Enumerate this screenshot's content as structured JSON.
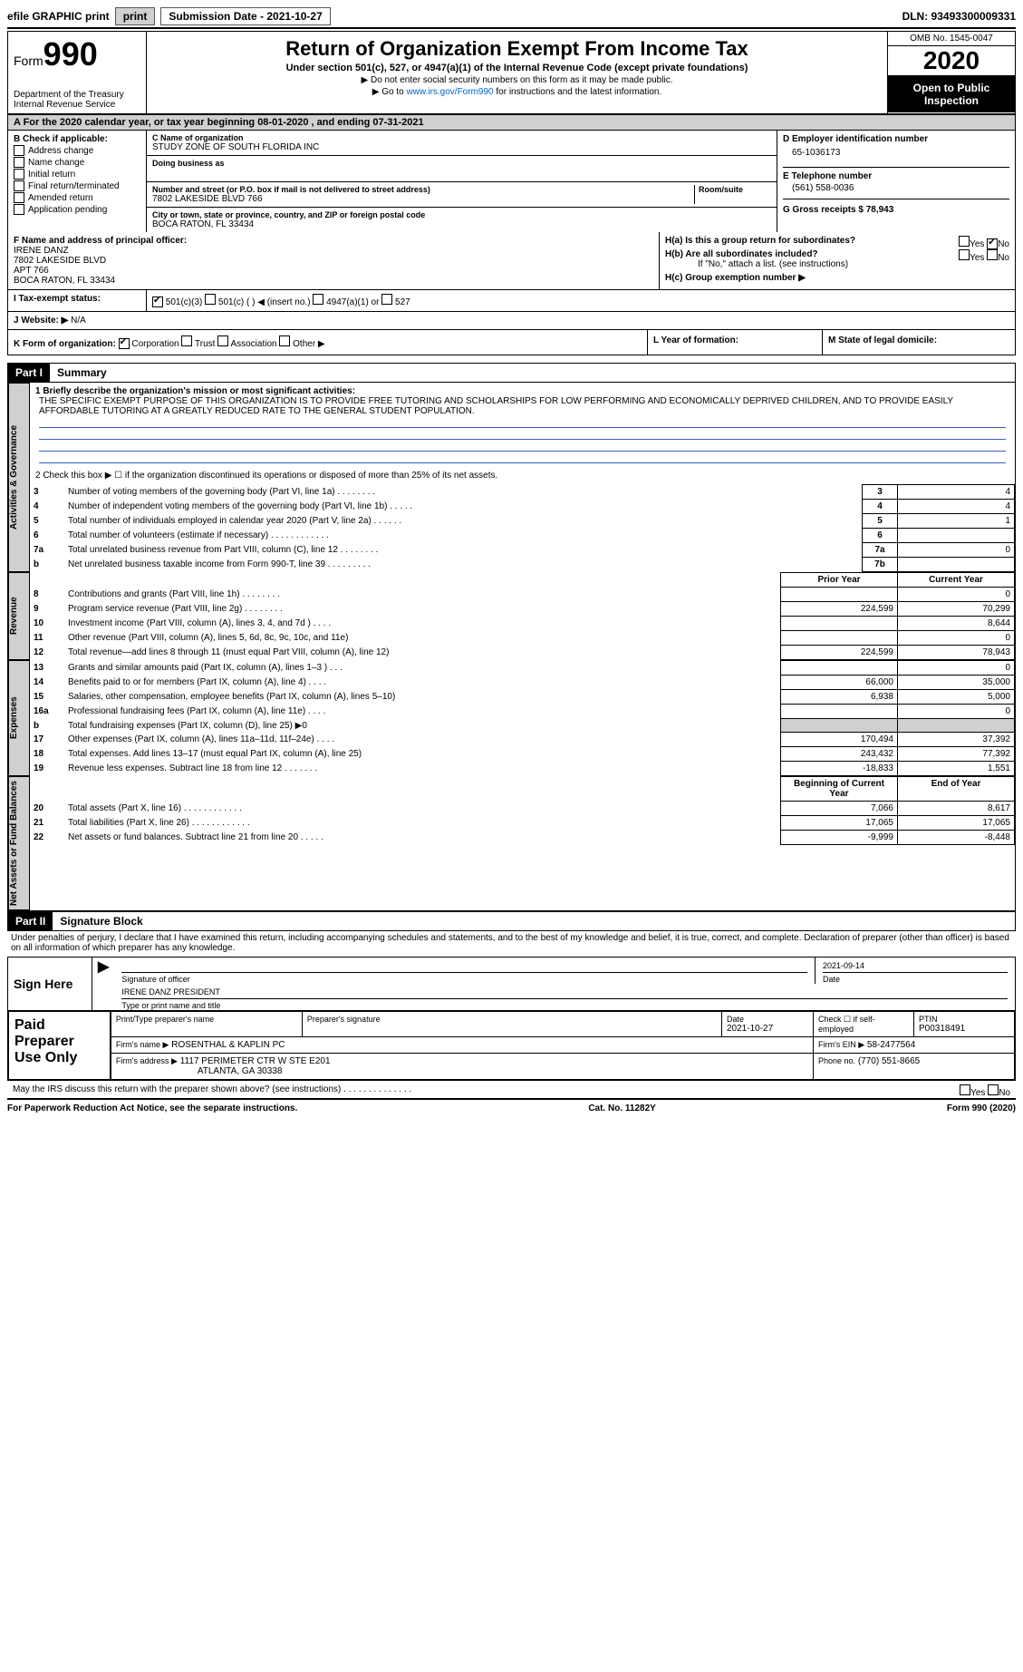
{
  "topbar": {
    "efile": "efile GRAPHIC print",
    "submission_label": "Submission Date - 2021-10-27",
    "dln": "DLN: 93493300009331"
  },
  "header": {
    "form_prefix": "Form",
    "form_number": "990",
    "dept": "Department of the Treasury",
    "irs": "Internal Revenue Service",
    "title": "Return of Organization Exempt From Income Tax",
    "subtitle": "Under section 501(c), 527, or 4947(a)(1) of the Internal Revenue Code (except private foundations)",
    "instr1": "▶ Do not enter social security numbers on this form as it may be made public.",
    "instr2_pre": "▶ Go to ",
    "instr2_link": "www.irs.gov/Form990",
    "instr2_post": " for instructions and the latest information.",
    "omb": "OMB No. 1545-0047",
    "year": "2020",
    "open_public": "Open to Public Inspection"
  },
  "period": {
    "text": "A For the 2020 calendar year, or tax year beginning 08-01-2020    , and ending 07-31-2021"
  },
  "boxB": {
    "label": "B Check if applicable:",
    "items": [
      "Address change",
      "Name change",
      "Initial return",
      "Final return/terminated",
      "Amended return",
      "Application pending"
    ]
  },
  "boxC": {
    "name_label": "C Name of organization",
    "name": "STUDY ZONE OF SOUTH FLORIDA INC",
    "dba_label": "Doing business as",
    "dba": "",
    "addr_label": "Number and street (or P.O. box if mail is not delivered to street address)",
    "room_label": "Room/suite",
    "addr": "7802 LAKESIDE BLVD 766",
    "city_label": "City or town, state or province, country, and ZIP or foreign postal code",
    "city": "BOCA RATON, FL  33434"
  },
  "boxD": {
    "label": "D Employer identification number",
    "ein": "65-1036173"
  },
  "boxE": {
    "label": "E Telephone number",
    "phone": "(561) 558-0036"
  },
  "boxG": {
    "label": "G Gross receipts $ 78,943"
  },
  "boxF": {
    "label": "F  Name and address of principal officer:",
    "name": "IRENE DANZ",
    "addr1": "7802 LAKESIDE BLVD",
    "addr2": "APT 766",
    "city": "BOCA RATON, FL  33434"
  },
  "boxH": {
    "a_label": "H(a)  Is this a group return for subordinates?",
    "b_label": "H(b)  Are all subordinates included?",
    "b_note": "If \"No,\" attach a list. (see instructions)",
    "c_label": "H(c)  Group exemption number ▶",
    "yes": "Yes",
    "no": "No"
  },
  "boxI": {
    "label": "I   Tax-exempt status:",
    "opts": [
      "501(c)(3)",
      "501(c) (   ) ◀ (insert no.)",
      "4947(a)(1) or",
      "527"
    ]
  },
  "boxJ": {
    "label": "J   Website: ▶",
    "value": "N/A"
  },
  "boxK": {
    "label": "K Form of organization:",
    "opts": [
      "Corporation",
      "Trust",
      "Association",
      "Other ▶"
    ]
  },
  "boxL": {
    "label": "L Year of formation:"
  },
  "boxM": {
    "label": "M State of legal domicile:"
  },
  "part1": {
    "header": "Part I",
    "title": "Summary",
    "line1_label": "1  Briefly describe the organization's mission or most significant activities:",
    "mission": "THE SPECIFIC EXEMPT PURPOSE OF THIS ORGANIZATION IS TO PROVIDE FREE TUTORING AND SCHOLARSHIPS FOR LOW PERFORMING AND ECONOMICALLY DEPRIVED CHILDREN, AND TO PROVIDE EASILY AFFORDABLE TUTORING AT A GREATLY REDUCED RATE TO THE GENERAL STUDENT POPULATION.",
    "line2": "2   Check this box ▶ ☐  if the organization discontinued its operations or disposed of more than 25% of its net assets.",
    "tabs": {
      "gov": "Activities & Governance",
      "rev": "Revenue",
      "exp": "Expenses",
      "net": "Net Assets or Fund Balances"
    },
    "rows_gov": [
      {
        "n": "3",
        "desc": "Number of voting members of the governing body (Part VI, line 1a)   .    .    .    .    .    .    .    .",
        "ln": "3",
        "v": "4"
      },
      {
        "n": "4",
        "desc": "Number of independent voting members of the governing body (Part VI, line 1b)   .    .    .    .    .",
        "ln": "4",
        "v": "4"
      },
      {
        "n": "5",
        "desc": "Total number of individuals employed in calendar year 2020 (Part V, line 2a)  .    .    .    .    .    .",
        "ln": "5",
        "v": "1"
      },
      {
        "n": "6",
        "desc": "Total number of volunteers (estimate if necessary)  .    .    .    .    .    .    .    .    .    .    .    .",
        "ln": "6",
        "v": ""
      },
      {
        "n": "7a",
        "desc": "Total unrelated business revenue from Part VIII, column (C), line 12   .    .    .    .    .    .    .    .",
        "ln": "7a",
        "v": "0"
      },
      {
        "n": "b",
        "desc": "Net unrelated business taxable income from Form 990-T, line 39   .    .    .    .    .    .    .    .    .",
        "ln": "7b",
        "v": ""
      }
    ],
    "col_prior": "Prior Year",
    "col_current": "Current Year",
    "rows_rev": [
      {
        "n": "8",
        "desc": "Contributions and grants (Part VIII, line 1h)   .    .    .    .    .    .    .    .",
        "p": "",
        "c": "0"
      },
      {
        "n": "9",
        "desc": "Program service revenue (Part VIII, line 2g)   .    .    .    .    .    .    .    .",
        "p": "224,599",
        "c": "70,299"
      },
      {
        "n": "10",
        "desc": "Investment income (Part VIII, column (A), lines 3, 4, and 7d )   .    .    .    .",
        "p": "",
        "c": "8,644"
      },
      {
        "n": "11",
        "desc": "Other revenue (Part VIII, column (A), lines 5, 6d, 8c, 9c, 10c, and 11e)",
        "p": "",
        "c": "0"
      },
      {
        "n": "12",
        "desc": "Total revenue—add lines 8 through 11 (must equal Part VIII, column (A), line 12)",
        "p": "224,599",
        "c": "78,943"
      }
    ],
    "rows_exp": [
      {
        "n": "13",
        "desc": "Grants and similar amounts paid (Part IX, column (A), lines 1–3 )   .    .    .",
        "p": "",
        "c": "0"
      },
      {
        "n": "14",
        "desc": "Benefits paid to or for members (Part IX, column (A), line 4)   .    .    .    .",
        "p": "66,000",
        "c": "35,000"
      },
      {
        "n": "15",
        "desc": "Salaries, other compensation, employee benefits (Part IX, column (A), lines 5–10)",
        "p": "6,938",
        "c": "5,000"
      },
      {
        "n": "16a",
        "desc": "Professional fundraising fees (Part IX, column (A), line 11e)   .    .    .    .",
        "p": "",
        "c": "0"
      },
      {
        "n": "b",
        "desc": "Total fundraising expenses (Part IX, column (D), line 25) ▶0",
        "shaded": true
      },
      {
        "n": "17",
        "desc": "Other expenses (Part IX, column (A), lines 11a–11d, 11f–24e)   .    .    .    .",
        "p": "170,494",
        "c": "37,392"
      },
      {
        "n": "18",
        "desc": "Total expenses. Add lines 13–17 (must equal Part IX, column (A), line 25)",
        "p": "243,432",
        "c": "77,392"
      },
      {
        "n": "19",
        "desc": "Revenue less expenses. Subtract line 18 from line 12   .    .    .    .    .    .    .",
        "p": "-18,833",
        "c": "1,551"
      }
    ],
    "col_begin": "Beginning of Current Year",
    "col_end": "End of Year",
    "rows_net": [
      {
        "n": "20",
        "desc": "Total assets (Part X, line 16)   .    .    .    .    .    .    .    .    .    .    .    .",
        "p": "7,066",
        "c": "8,617"
      },
      {
        "n": "21",
        "desc": "Total liabilities (Part X, line 26)   .    .    .    .    .    .    .    .    .    .    .    .",
        "p": "17,065",
        "c": "17,065"
      },
      {
        "n": "22",
        "desc": "Net assets or fund balances. Subtract line 21 from line 20   .    .    .    .    .",
        "p": "-9,999",
        "c": "-8,448"
      }
    ]
  },
  "part2": {
    "header": "Part II",
    "title": "Signature Block",
    "perjury": "Under penalties of perjury, I declare that I have examined this return, including accompanying schedules and statements, and to the best of my knowledge and belief, it is true, correct, and complete. Declaration of preparer (other than officer) is based on all information of which preparer has any knowledge.",
    "sign_here": "Sign Here",
    "sig_officer": "Signature of officer",
    "sig_date": "2021-09-14",
    "date_label": "Date",
    "officer_name": "IRENE DANZ PRESIDENT",
    "type_name": "Type or print name and title",
    "paid_prep": "Paid Preparer Use Only",
    "prep_name_label": "Print/Type preparer's name",
    "prep_sig_label": "Preparer's signature",
    "prep_date_label": "Date",
    "prep_date": "2021-10-27",
    "check_label": "Check ☐ if self-employed",
    "ptin_label": "PTIN",
    "ptin": "P00318491",
    "firm_name_label": "Firm's name     ▶",
    "firm_name": "ROSENTHAL & KAPLIN PC",
    "firm_ein_label": "Firm's EIN ▶",
    "firm_ein": "58-2477564",
    "firm_addr_label": "Firm's address ▶",
    "firm_addr1": "1117 PERIMETER CTR W STE E201",
    "firm_addr2": "ATLANTA, GA  30338",
    "firm_phone_label": "Phone no.",
    "firm_phone": "(770) 551-8665",
    "discuss": "May the IRS discuss this return with the preparer shown above? (see instructions)   .    .    .    .    .    .    .    .    .    .    .    .    .    .",
    "yes": "Yes",
    "no": "No"
  },
  "footer": {
    "pra": "For Paperwork Reduction Act Notice, see the separate instructions.",
    "cat": "Cat. No. 11282Y",
    "form": "Form 990 (2020)"
  },
  "colors": {
    "rule_blue": "#3b5fc4",
    "shade": "#d0d0d0",
    "link": "#0066cc"
  }
}
